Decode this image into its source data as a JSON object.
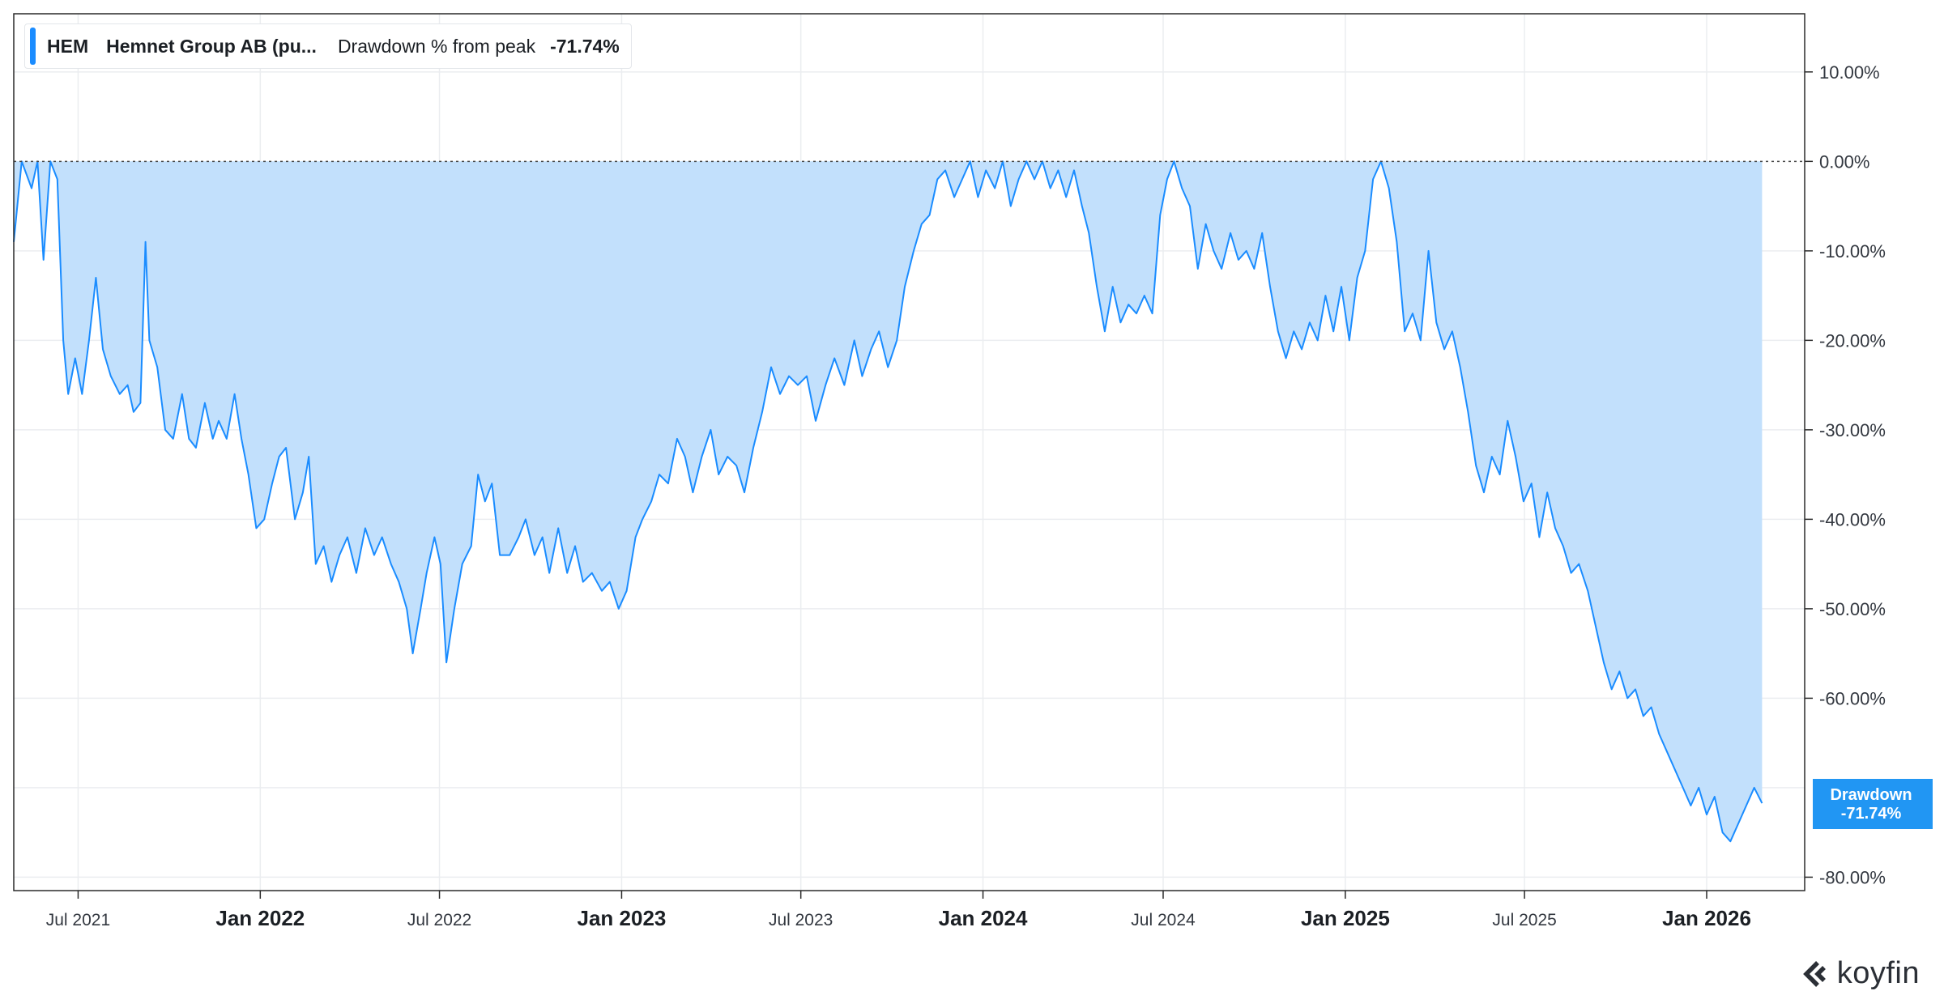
{
  "legend": {
    "ticker": "HEM",
    "name": "Hemnet Group AB (pu...",
    "metric": "Drawdown % from peak",
    "value": "-71.74%"
  },
  "badge": {
    "label": "Drawdown",
    "value": "-71.74%"
  },
  "brand": {
    "name": "koyfin",
    "icon": "koyfin-logo-icon"
  },
  "colors": {
    "line": "#1a8cff",
    "fill": "#c2e0fc",
    "badge": "#2196f3",
    "grid": "#ebedf0",
    "zero_line": "#4a4a4a"
  },
  "chart_data": {
    "type": "area",
    "series": [
      {
        "name": "Drawdown % from peak",
        "points": [
          [
            "2021-04-27",
            -9.0
          ],
          [
            "2021-05-05",
            0
          ],
          [
            "2021-05-15",
            -3
          ],
          [
            "2021-05-21",
            0
          ],
          [
            "2021-05-27",
            -11
          ],
          [
            "2021-06-03",
            0
          ],
          [
            "2021-06-10",
            -2
          ],
          [
            "2021-06-16",
            -20
          ],
          [
            "2021-06-21",
            -26
          ],
          [
            "2021-06-28",
            -22
          ],
          [
            "2021-07-05",
            -26
          ],
          [
            "2021-07-12",
            -20
          ],
          [
            "2021-07-19",
            -13
          ],
          [
            "2021-07-26",
            -21
          ],
          [
            "2021-08-03",
            -24
          ],
          [
            "2021-08-12",
            -26
          ],
          [
            "2021-08-20",
            -25
          ],
          [
            "2021-08-26",
            -28
          ],
          [
            "2021-09-02",
            -27
          ],
          [
            "2021-09-07",
            -9
          ],
          [
            "2021-09-11",
            -20
          ],
          [
            "2021-09-19",
            -23
          ],
          [
            "2021-09-27",
            -30
          ],
          [
            "2021-10-05",
            -31
          ],
          [
            "2021-10-14",
            -26
          ],
          [
            "2021-10-21",
            -31
          ],
          [
            "2021-10-28",
            -32
          ],
          [
            "2021-11-06",
            -27
          ],
          [
            "2021-11-14",
            -31
          ],
          [
            "2021-11-20",
            -29
          ],
          [
            "2021-11-28",
            -31
          ],
          [
            "2021-12-06",
            -26
          ],
          [
            "2021-12-13",
            -31
          ],
          [
            "2021-12-20",
            -35
          ],
          [
            "2021-12-28",
            -41
          ],
          [
            "2022-01-05",
            -40
          ],
          [
            "2022-01-13",
            -36
          ],
          [
            "2022-01-20",
            -33
          ],
          [
            "2022-01-27",
            -32
          ],
          [
            "2022-02-05",
            -40
          ],
          [
            "2022-02-13",
            -37
          ],
          [
            "2022-02-19",
            -33
          ],
          [
            "2022-02-26",
            -45
          ],
          [
            "2022-03-06",
            -43
          ],
          [
            "2022-03-14",
            -47
          ],
          [
            "2022-03-22",
            -44
          ],
          [
            "2022-03-30",
            -42
          ],
          [
            "2022-04-08",
            -46
          ],
          [
            "2022-04-17",
            -41
          ],
          [
            "2022-04-26",
            -44
          ],
          [
            "2022-05-04",
            -42
          ],
          [
            "2022-05-13",
            -45
          ],
          [
            "2022-05-21",
            -47
          ],
          [
            "2022-05-29",
            -50
          ],
          [
            "2022-06-04",
            -55
          ],
          [
            "2022-06-12",
            -50
          ],
          [
            "2022-06-18",
            -46
          ],
          [
            "2022-06-26",
            -42
          ],
          [
            "2022-07-02",
            -45
          ],
          [
            "2022-07-08",
            -56
          ],
          [
            "2022-07-16",
            -50
          ],
          [
            "2022-07-24",
            -45
          ],
          [
            "2022-08-02",
            -43
          ],
          [
            "2022-08-09",
            -35
          ],
          [
            "2022-08-16",
            -38
          ],
          [
            "2022-08-23",
            -36
          ],
          [
            "2022-08-31",
            -44
          ],
          [
            "2022-09-10",
            -44
          ],
          [
            "2022-09-19",
            -42
          ],
          [
            "2022-09-26",
            -40
          ],
          [
            "2022-10-05",
            -44
          ],
          [
            "2022-10-13",
            -42
          ],
          [
            "2022-10-20",
            -46
          ],
          [
            "2022-10-29",
            -41
          ],
          [
            "2022-11-07",
            -46
          ],
          [
            "2022-11-15",
            -43
          ],
          [
            "2022-11-23",
            -47
          ],
          [
            "2022-12-02",
            -46
          ],
          [
            "2022-12-12",
            -48
          ],
          [
            "2022-12-20",
            -47
          ],
          [
            "2022-12-29",
            -50
          ],
          [
            "2023-01-06",
            -48
          ],
          [
            "2023-01-15",
            -42
          ],
          [
            "2023-01-22",
            -40
          ],
          [
            "2023-01-31",
            -38
          ],
          [
            "2023-02-08",
            -35
          ],
          [
            "2023-02-17",
            -36
          ],
          [
            "2023-02-26",
            -31
          ],
          [
            "2023-03-06",
            -33
          ],
          [
            "2023-03-14",
            -37
          ],
          [
            "2023-03-23",
            -33
          ],
          [
            "2023-04-01",
            -30
          ],
          [
            "2023-04-09",
            -35
          ],
          [
            "2023-04-18",
            -33
          ],
          [
            "2023-04-27",
            -34
          ],
          [
            "2023-05-05",
            -37
          ],
          [
            "2023-05-14",
            -32
          ],
          [
            "2023-05-23",
            -28
          ],
          [
            "2023-06-01",
            -23
          ],
          [
            "2023-06-10",
            -26
          ],
          [
            "2023-06-19",
            -24
          ],
          [
            "2023-06-28",
            -25
          ],
          [
            "2023-07-07",
            -24
          ],
          [
            "2023-07-16",
            -29
          ],
          [
            "2023-07-26",
            -25
          ],
          [
            "2023-08-04",
            -22
          ],
          [
            "2023-08-14",
            -25
          ],
          [
            "2023-08-24",
            -20
          ],
          [
            "2023-09-01",
            -24
          ],
          [
            "2023-09-10",
            -21
          ],
          [
            "2023-09-18",
            -19
          ],
          [
            "2023-09-27",
            -23
          ],
          [
            "2023-10-06",
            -20
          ],
          [
            "2023-10-14",
            -14
          ],
          [
            "2023-10-23",
            -10
          ],
          [
            "2023-10-31",
            -7
          ],
          [
            "2023-11-08",
            -6
          ],
          [
            "2023-11-16",
            -2
          ],
          [
            "2023-11-24",
            -1
          ],
          [
            "2023-12-03",
            -4
          ],
          [
            "2023-12-11",
            -2
          ],
          [
            "2023-12-19",
            0
          ],
          [
            "2023-12-27",
            -4
          ],
          [
            "2024-01-04",
            -1
          ],
          [
            "2024-01-13",
            -3
          ],
          [
            "2024-01-21",
            0
          ],
          [
            "2024-01-29",
            -5
          ],
          [
            "2024-02-06",
            -2
          ],
          [
            "2024-02-14",
            0
          ],
          [
            "2024-02-22",
            -2
          ],
          [
            "2024-03-01",
            0
          ],
          [
            "2024-03-09",
            -3
          ],
          [
            "2024-03-17",
            -1
          ],
          [
            "2024-03-25",
            -4
          ],
          [
            "2024-04-02",
            -1
          ],
          [
            "2024-04-10",
            -5
          ],
          [
            "2024-04-17",
            -8
          ],
          [
            "2024-04-25",
            -14
          ],
          [
            "2024-05-03",
            -19
          ],
          [
            "2024-05-11",
            -14
          ],
          [
            "2024-05-19",
            -18
          ],
          [
            "2024-05-27",
            -16
          ],
          [
            "2024-06-04",
            -17
          ],
          [
            "2024-06-12",
            -15
          ],
          [
            "2024-06-20",
            -17
          ],
          [
            "2024-06-28",
            -6
          ],
          [
            "2024-07-05",
            -2
          ],
          [
            "2024-07-12",
            0
          ],
          [
            "2024-07-20",
            -3
          ],
          [
            "2024-07-28",
            -5
          ],
          [
            "2024-08-05",
            -12
          ],
          [
            "2024-08-13",
            -7
          ],
          [
            "2024-08-21",
            -10
          ],
          [
            "2024-08-29",
            -12
          ],
          [
            "2024-09-07",
            -8
          ],
          [
            "2024-09-15",
            -11
          ],
          [
            "2024-09-23",
            -10
          ],
          [
            "2024-10-01",
            -12
          ],
          [
            "2024-10-09",
            -8
          ],
          [
            "2024-10-17",
            -14
          ],
          [
            "2024-10-25",
            -19
          ],
          [
            "2024-11-02",
            -22
          ],
          [
            "2024-11-10",
            -19
          ],
          [
            "2024-11-18",
            -21
          ],
          [
            "2024-11-26",
            -18
          ],
          [
            "2024-12-04",
            -20
          ],
          [
            "2024-12-12",
            -15
          ],
          [
            "2024-12-20",
            -19
          ],
          [
            "2024-12-28",
            -14
          ],
          [
            "2025-01-05",
            -20
          ],
          [
            "2025-01-13",
            -13
          ],
          [
            "2025-01-21",
            -10
          ],
          [
            "2025-01-29",
            -2
          ],
          [
            "2025-02-06",
            0
          ],
          [
            "2025-02-14",
            -3
          ],
          [
            "2025-02-22",
            -9
          ],
          [
            "2025-03-02",
            -19
          ],
          [
            "2025-03-10",
            -17
          ],
          [
            "2025-03-18",
            -20
          ],
          [
            "2025-03-26",
            -10
          ],
          [
            "2025-04-03",
            -18
          ],
          [
            "2025-04-11",
            -21
          ],
          [
            "2025-04-19",
            -19
          ],
          [
            "2025-04-27",
            -23
          ],
          [
            "2025-05-05",
            -28
          ],
          [
            "2025-05-13",
            -34
          ],
          [
            "2025-05-21",
            -37
          ],
          [
            "2025-05-29",
            -33
          ],
          [
            "2025-06-06",
            -35
          ],
          [
            "2025-06-14",
            -29
          ],
          [
            "2025-06-22",
            -33
          ],
          [
            "2025-06-30",
            -38
          ],
          [
            "2025-07-08",
            -36
          ],
          [
            "2025-07-16",
            -42
          ],
          [
            "2025-07-24",
            -37
          ],
          [
            "2025-08-01",
            -41
          ],
          [
            "2025-08-09",
            -43
          ],
          [
            "2025-08-17",
            -46
          ],
          [
            "2025-08-25",
            -45
          ],
          [
            "2025-09-03",
            -48
          ],
          [
            "2025-09-11",
            -52
          ],
          [
            "2025-09-19",
            -56
          ],
          [
            "2025-09-27",
            -59
          ],
          [
            "2025-10-05",
            -57
          ],
          [
            "2025-10-13",
            -60
          ],
          [
            "2025-10-21",
            -59
          ],
          [
            "2025-10-29",
            -62
          ],
          [
            "2025-11-06",
            -61
          ],
          [
            "2025-11-14",
            -64
          ],
          [
            "2025-11-22",
            -66
          ],
          [
            "2025-11-30",
            -68
          ],
          [
            "2025-12-08",
            -70
          ],
          [
            "2025-12-16",
            -72
          ],
          [
            "2025-12-24",
            -70
          ],
          [
            "2026-01-01",
            -73
          ],
          [
            "2026-01-09",
            -71
          ],
          [
            "2026-01-17",
            -75
          ],
          [
            "2026-01-25",
            -76
          ],
          [
            "2026-02-02",
            -74
          ],
          [
            "2026-02-10",
            -72
          ],
          [
            "2026-02-18",
            -70
          ],
          [
            "2026-02-26",
            -71.74
          ]
        ]
      }
    ],
    "yticks": [
      "10.00%",
      "0.00%",
      "-10.00%",
      "-20.00%",
      "-30.00%",
      "-40.00%",
      "-50.00%",
      "-60.00%",
      "-80.00%"
    ],
    "ytick_values": [
      10,
      0,
      -10,
      -20,
      -30,
      -40,
      -50,
      -60,
      -80
    ],
    "xticks": [
      {
        "label": "Jul 2021",
        "date": "2021-07-01",
        "major": false
      },
      {
        "label": "Jan 2022",
        "date": "2022-01-01",
        "major": true
      },
      {
        "label": "Jul 2022",
        "date": "2022-07-01",
        "major": false
      },
      {
        "label": "Jan 2023",
        "date": "2023-01-01",
        "major": true
      },
      {
        "label": "Jul 2023",
        "date": "2023-07-01",
        "major": false
      },
      {
        "label": "Jan 2024",
        "date": "2024-01-01",
        "major": true
      },
      {
        "label": "Jul 2024",
        "date": "2024-07-01",
        "major": false
      },
      {
        "label": "Jan 2025",
        "date": "2025-01-01",
        "major": true
      },
      {
        "label": "Jul 2025",
        "date": "2025-07-01",
        "major": false
      },
      {
        "label": "Jan 2026",
        "date": "2026-01-01",
        "major": true
      }
    ],
    "xlim": [
      "2021-04-27",
      "2026-04-10"
    ],
    "ylim": [
      -81.5,
      16.5
    ],
    "grid": true,
    "legend_position": "top-left"
  }
}
